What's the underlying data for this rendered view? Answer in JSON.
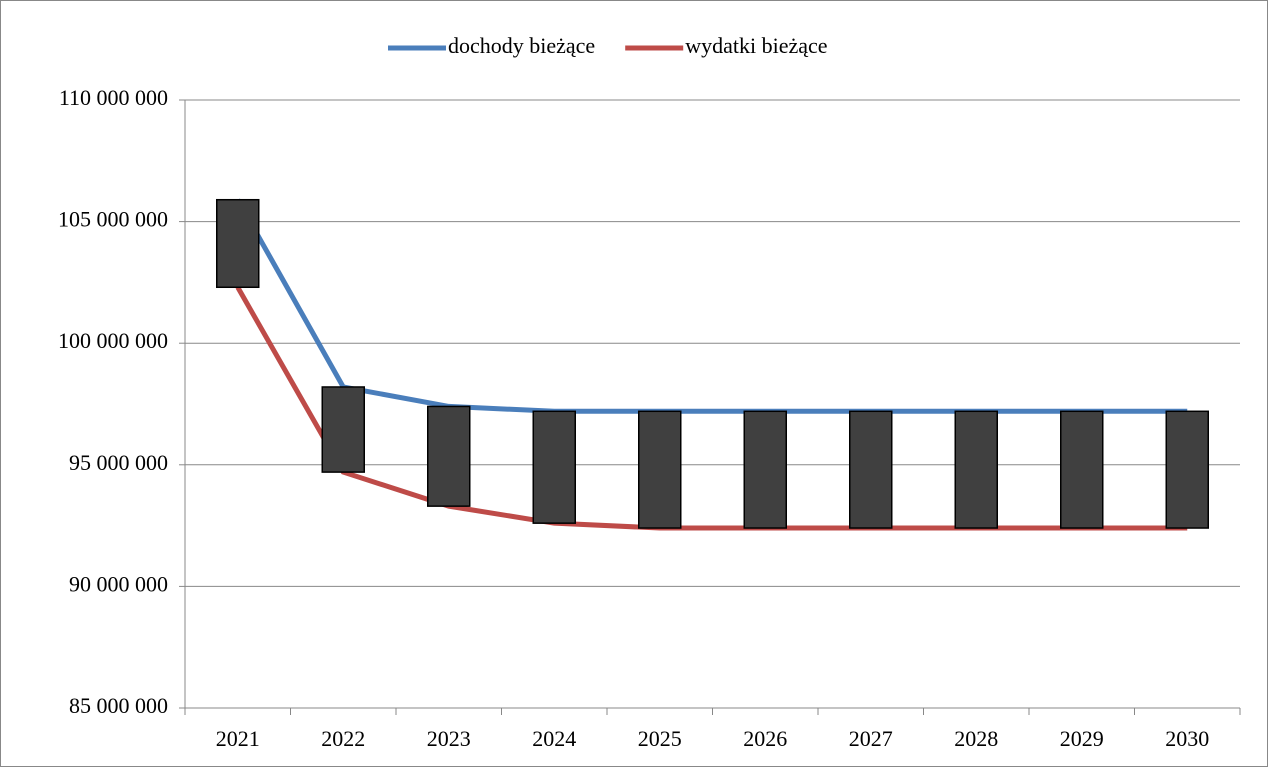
{
  "chart_data": {
    "type": "line",
    "categories": [
      "2021",
      "2022",
      "2023",
      "2024",
      "2025",
      "2026",
      "2027",
      "2028",
      "2029",
      "2030"
    ],
    "series": [
      {
        "name": "dochody bieżące",
        "color": "#4a7ebb",
        "values": [
          105900000,
          98200000,
          97400000,
          97200000,
          97200000,
          97200000,
          97200000,
          97200000,
          97200000,
          97200000
        ]
      },
      {
        "name": "wydatki bieżące",
        "color": "#be4b48",
        "values": [
          102300000,
          94700000,
          93300000,
          92600000,
          92400000,
          92400000,
          92400000,
          92400000,
          92400000,
          92400000
        ]
      }
    ],
    "up_down_bars": true,
    "ylim": [
      85000000,
      110000000
    ],
    "yticks": [
      {
        "value": 85000000,
        "label": "85 000 000"
      },
      {
        "value": 90000000,
        "label": "90 000 000"
      },
      {
        "value": 95000000,
        "label": "95 000 000"
      },
      {
        "value": 100000000,
        "label": "100 000 000"
      },
      {
        "value": 105000000,
        "label": "105 000 000"
      },
      {
        "value": 110000000,
        "label": "110 000 000"
      }
    ],
    "grid": true,
    "legend": "top"
  }
}
